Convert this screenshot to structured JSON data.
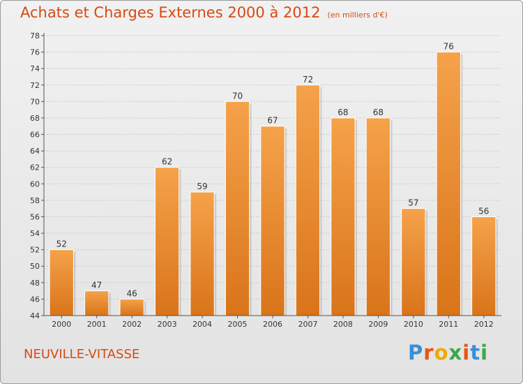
{
  "header": {
    "title": "Achats et Charges Externes 2000 à 2012",
    "unit": "(en milliers d'€)"
  },
  "footer": {
    "commune": "NEUVILLE-VITASSE",
    "logo": {
      "text": "Proxiti",
      "colors": [
        "#3a8fd6",
        "#e8541a",
        "#f2a900",
        "#3aa948",
        "#e8541a",
        "#3a8fd6",
        "#3aa948"
      ]
    }
  },
  "chart_data": {
    "type": "bar",
    "title": "Achats et Charges Externes 2000 à 2012",
    "unit": "(en milliers d'€)",
    "categories": [
      "2000",
      "2001",
      "2002",
      "2003",
      "2004",
      "2005",
      "2006",
      "2007",
      "2008",
      "2009",
      "2010",
      "2011",
      "2012"
    ],
    "values": [
      52,
      47,
      46,
      62,
      59,
      70,
      67,
      72,
      68,
      68,
      57,
      76,
      56
    ],
    "ylim": [
      44,
      78
    ],
    "yticks": [
      44,
      46,
      48,
      50,
      52,
      54,
      56,
      58,
      60,
      62,
      64,
      66,
      68,
      70,
      72,
      74,
      76,
      78
    ],
    "grid": true,
    "legend": "none",
    "bar_color": "#f29b3f",
    "bar_color_dark": "#e07a1c"
  }
}
